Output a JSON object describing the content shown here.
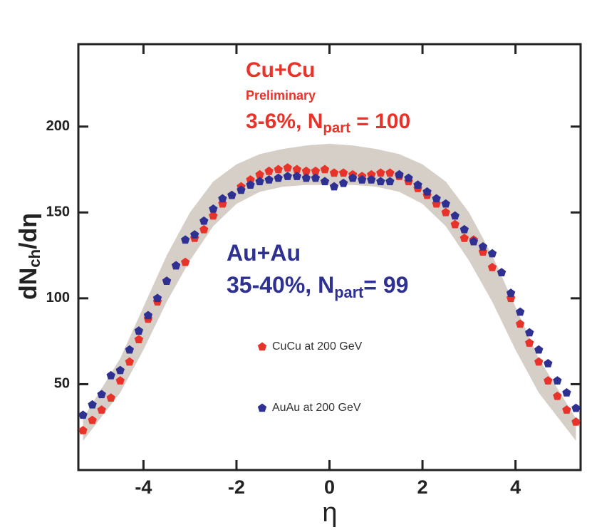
{
  "chart_data": {
    "type": "scatter",
    "ylabel": {
      "text": "dN",
      "sub": "ch",
      "after": "/dη"
    },
    "xlabel": "η",
    "annotations": [
      {
        "text": "Cu+Cu",
        "color": "#e8332a"
      },
      {
        "text": "Preliminary",
        "color": "#e8332a"
      },
      {
        "text": "3-6%, N",
        "sub": "part",
        "after": " = 100",
        "color": "#e8332a"
      },
      {
        "text": "Au+Au",
        "color": "#2e3192"
      },
      {
        "text": "35-40%, N",
        "sub": "part",
        "after": "= 99",
        "color": "#2e3192"
      }
    ],
    "xlim": [
      -5.4,
      5.4
    ],
    "ylim": [
      0,
      248
    ],
    "xticks": [
      -4,
      -2,
      0,
      2,
      4
    ],
    "yticks": [
      50,
      100,
      150,
      200
    ],
    "x": [
      -5.3,
      -5.1,
      -4.9,
      -4.7,
      -4.5,
      -4.3,
      -4.1,
      -3.9,
      -3.7,
      -3.5,
      -3.3,
      -3.1,
      -2.9,
      -2.7,
      -2.5,
      -2.3,
      -2.1,
      -1.9,
      -1.7,
      -1.5,
      -1.3,
      -1.1,
      -0.9,
      -0.7,
      -0.5,
      -0.3,
      -0.1,
      0.1,
      0.3,
      0.5,
      0.7,
      0.9,
      1.1,
      1.3,
      1.5,
      1.7,
      1.9,
      2.1,
      2.3,
      2.5,
      2.7,
      2.9,
      3.1,
      3.3,
      3.5,
      3.7,
      3.9,
      4.1,
      4.3,
      4.5,
      4.7,
      4.9,
      5.1,
      5.3
    ],
    "series": [
      {
        "name": "CuCu at 200 GeV",
        "color": "#e8332a",
        "values": [
          23,
          29,
          35,
          42,
          52,
          63,
          76,
          88,
          98,
          110,
          119,
          121,
          135,
          140,
          148,
          155,
          160,
          165,
          169,
          172,
          174,
          175,
          176,
          175,
          174,
          174,
          175,
          173,
          173,
          172,
          171,
          172,
          173,
          173,
          171,
          168,
          164,
          160,
          155,
          150,
          143,
          135,
          134,
          127,
          118,
          115,
          100,
          85,
          74,
          63,
          52,
          43,
          35,
          28
        ]
      },
      {
        "name": "AuAu at 200 GeV",
        "color": "#2e3192",
        "values": [
          32,
          38,
          44,
          55,
          58,
          70,
          81,
          90,
          100,
          110,
          119,
          134,
          137,
          145,
          152,
          158,
          160,
          163,
          166,
          168,
          169,
          170,
          171,
          171,
          170,
          170,
          168,
          165,
          167,
          170,
          169,
          169,
          168,
          168,
          172,
          170,
          166,
          162,
          158,
          155,
          148,
          140,
          133,
          130,
          126,
          115,
          103,
          92,
          80,
          70,
          62,
          52,
          45,
          36
        ]
      }
    ],
    "band": {
      "color": "#d6cfc8",
      "x": [
        -5.3,
        -4.5,
        -4,
        -3.5,
        -3,
        -2.5,
        -2,
        -1.5,
        -1,
        -0.5,
        0,
        0.5,
        1,
        1.5,
        2,
        2.5,
        3,
        3.5,
        4,
        4.5,
        5.3
      ],
      "upper": [
        30,
        65,
        95,
        125,
        150,
        168,
        178,
        184,
        187,
        189,
        190,
        189,
        187,
        184,
        178,
        168,
        150,
        125,
        95,
        65,
        30
      ],
      "lower": [
        17,
        45,
        70,
        98,
        122,
        142,
        155,
        162,
        165,
        166,
        166,
        166,
        165,
        162,
        155,
        142,
        122,
        98,
        70,
        45,
        17
      ]
    }
  }
}
